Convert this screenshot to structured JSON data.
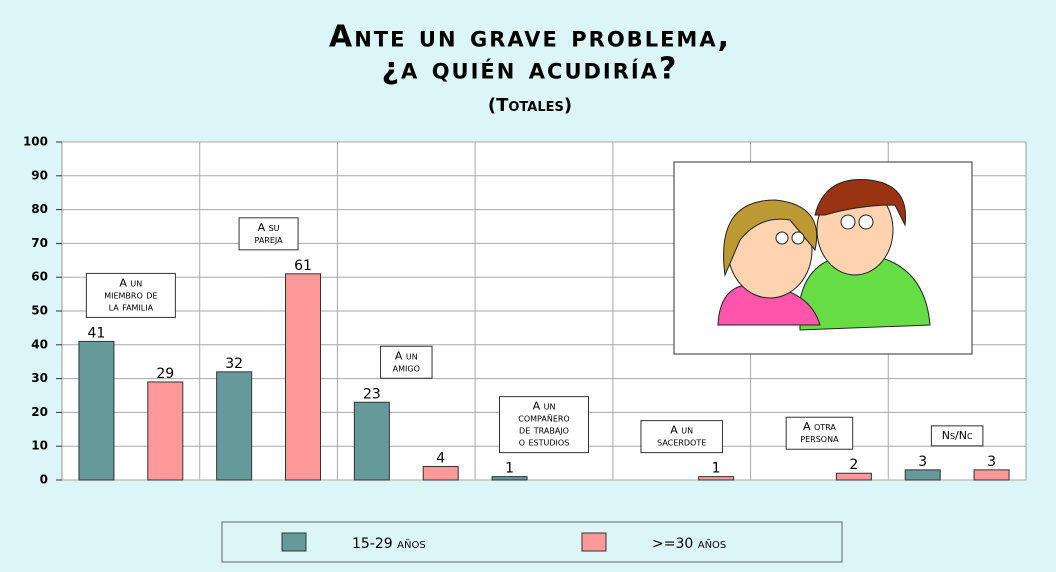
{
  "chart_data": {
    "type": "bar",
    "title": [
      "Ante un grave problema,",
      "¿a quién acudiría?"
    ],
    "subtitle": "(Totales)",
    "categories": [
      [
        "A un",
        "miembro de",
        "la familia"
      ],
      [
        "A su",
        "pareja"
      ],
      [
        "A un",
        "amigo"
      ],
      [
        "A un",
        "compañero",
        "de trabajo",
        "o estudios"
      ],
      [
        "A un",
        "sacerdote"
      ],
      [
        "A otra",
        "persona"
      ],
      [
        "Ns/Nc"
      ]
    ],
    "series": [
      {
        "name": "15-29 años",
        "color": "#669999",
        "values": [
          41,
          32,
          23,
          1,
          null,
          null,
          3
        ]
      },
      {
        "name": ">=30 años",
        "color": "#ff9999",
        "values": [
          29,
          61,
          4,
          null,
          1,
          2,
          3
        ]
      }
    ],
    "ylim": [
      0,
      100
    ],
    "yticks": [
      0,
      10,
      20,
      30,
      40,
      50,
      60,
      70,
      80,
      90,
      100
    ],
    "grid": true
  }
}
